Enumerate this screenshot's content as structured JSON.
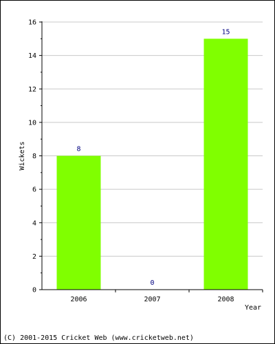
{
  "chart_data": {
    "type": "bar",
    "categories": [
      "2006",
      "2007",
      "2008"
    ],
    "values": [
      8,
      0,
      15
    ],
    "data_labels": [
      "8",
      "0",
      "15"
    ],
    "xlabel": "Year",
    "ylabel": "Wickets",
    "ylim": [
      0,
      16
    ],
    "yticks": [
      0,
      2,
      4,
      6,
      8,
      10,
      12,
      14,
      16
    ],
    "grid": true,
    "legend": "none"
  },
  "colors": {
    "bar": "#80ff00",
    "value_label": "#000080",
    "grid": "#c8c8c8",
    "axis": "#000000"
  },
  "footer": {
    "copyright": "(C) 2001-2015 Cricket Web (www.cricketweb.net)"
  }
}
